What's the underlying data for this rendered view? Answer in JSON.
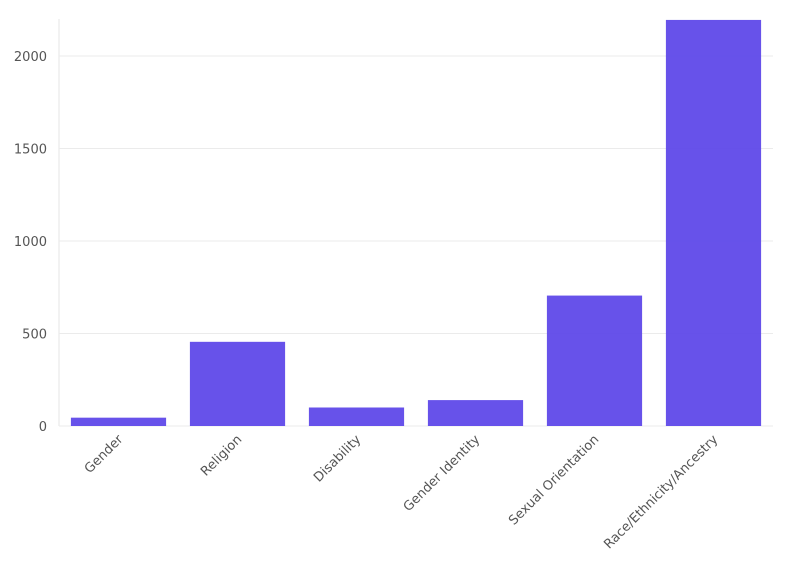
{
  "chart_data": {
    "type": "bar",
    "categories": [
      "Gender",
      "Religion",
      "Disability",
      "Gender Identity",
      "Sexual Orientation",
      "Race/Ethnicity/Ancestry"
    ],
    "values": [
      45,
      455,
      100,
      140,
      705,
      2195
    ],
    "color": "#5b45e8",
    "ylim": [
      0,
      2200
    ],
    "yticks": [
      0,
      500,
      1000,
      1500,
      2000
    ],
    "grid": true
  }
}
